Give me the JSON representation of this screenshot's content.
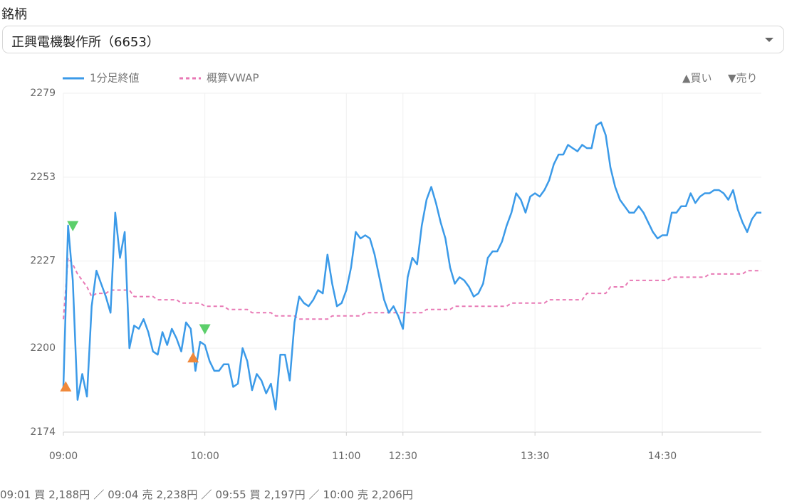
{
  "form": {
    "label": "銘柄",
    "select_value": "正興電機製作所（6653）"
  },
  "chart_data": {
    "type": "line",
    "categories": [
      "09:00",
      null,
      null,
      null,
      null,
      null,
      null,
      null,
      null,
      null,
      null,
      null,
      null,
      null,
      null,
      null,
      null,
      null,
      null,
      null,
      null,
      null,
      null,
      null,
      null,
      null,
      null,
      null,
      null,
      null,
      "10:00",
      null,
      null,
      null,
      null,
      null,
      null,
      null,
      null,
      null,
      null,
      null,
      null,
      null,
      null,
      null,
      null,
      null,
      null,
      null,
      null,
      null,
      null,
      null,
      null,
      null,
      null,
      null,
      null,
      null,
      "11:00",
      null,
      null,
      null,
      null,
      null,
      null,
      null,
      null,
      null,
      null,
      null,
      "12:30",
      null,
      null,
      null,
      null,
      null,
      null,
      null,
      null,
      null,
      null,
      null,
      null,
      null,
      null,
      null,
      null,
      null,
      null,
      null,
      null,
      null,
      null,
      null,
      null,
      null,
      null,
      null,
      "13:30",
      null,
      null,
      null,
      null,
      null,
      null,
      null,
      null,
      null,
      null,
      null,
      null,
      null,
      null,
      null,
      null,
      null,
      null,
      null,
      null,
      null,
      null,
      null,
      null,
      null,
      null,
      "14:30",
      null,
      null,
      null,
      null,
      null,
      null,
      null,
      null,
      null,
      null,
      null,
      null,
      null,
      null,
      null,
      null,
      null,
      null,
      null,
      null,
      null
    ],
    "series": [
      {
        "name": "1分足終値",
        "color": "#3b9ae8",
        "dashed": false,
        "values": [
          2188,
          2238,
          2221,
          2184,
          2192,
          2185,
          2213,
          2224,
          2220,
          2216,
          2211,
          2242,
          2228,
          2236,
          2200,
          2207,
          2206,
          2209,
          2205,
          2199,
          2198,
          2205,
          2201,
          2206,
          2203,
          2199,
          2208,
          2206,
          2193,
          2202,
          2201,
          2196,
          2193,
          2193,
          2195,
          2195,
          2188,
          2189,
          2200,
          2196,
          2187,
          2192,
          2190,
          2186,
          2189,
          2181,
          2198,
          2198,
          2190,
          2208,
          2216,
          2214,
          2213,
          2215,
          2218,
          2217,
          2229,
          2220,
          2213,
          2214,
          2218,
          2225,
          2236,
          2234,
          2235,
          2234,
          2229,
          2222,
          2215,
          2211,
          2213,
          2210,
          2206,
          2222,
          2228,
          2226,
          2238,
          2246,
          2250,
          2245,
          2239,
          2234,
          2225,
          2220,
          2222,
          2221,
          2219,
          2216,
          2217,
          2220,
          2228,
          2230,
          2230,
          2233,
          2238,
          2242,
          2248,
          2246,
          2242,
          2247,
          2248,
          2247,
          2249,
          2252,
          2257,
          2260,
          2260,
          2263,
          2262,
          2261,
          2263,
          2262,
          2262,
          2269,
          2270,
          2266,
          2256,
          2250,
          2246,
          2244,
          2242,
          2242,
          2244,
          2242,
          2239,
          2236,
          2234,
          2235,
          2235,
          2242,
          2242,
          2244,
          2244,
          2248,
          2245,
          2247,
          2248,
          2248,
          2249,
          2249,
          2248,
          2246,
          2249,
          2243,
          2239,
          2236,
          2240,
          2242,
          2242
        ]
      },
      {
        "name": "概算VWAP",
        "color": "#e879b5",
        "dashed": true,
        "values": [
          2209,
          2228,
          2226,
          2223,
          2221,
          2219,
          2216,
          2217,
          2217,
          2217,
          2218,
          2218,
          2218,
          2218,
          2218,
          2216,
          2216,
          2216,
          2216,
          2216,
          2215,
          2215,
          2215,
          2215,
          2215,
          2214,
          2214,
          2214,
          2214,
          2214,
          2213,
          2213,
          2213,
          2213,
          2213,
          2212,
          2212,
          2212,
          2212,
          2212,
          2211,
          2211,
          2211,
          2211,
          2211,
          2210,
          2210,
          2210,
          2210,
          2210,
          2209,
          2209,
          2209,
          2209,
          2209,
          2209,
          2209,
          2210,
          2210,
          2210,
          2210,
          2210,
          2210,
          2210,
          2211,
          2211,
          2211,
          2211,
          2211,
          2211,
          2211,
          2211,
          2211,
          2211,
          2211,
          2211,
          2211,
          2212,
          2212,
          2212,
          2212,
          2212,
          2212,
          2213,
          2213,
          2213,
          2213,
          2213,
          2213,
          2213,
          2213,
          2213,
          2213,
          2213,
          2213,
          2214,
          2214,
          2214,
          2214,
          2214,
          2214,
          2214,
          2214,
          2215,
          2215,
          2215,
          2215,
          2215,
          2215,
          2215,
          2215,
          2217,
          2217,
          2217,
          2217,
          2217,
          2219,
          2219,
          2219,
          2219,
          2221,
          2221,
          2221,
          2221,
          2221,
          2221,
          2221,
          2221,
          2221,
          2222,
          2222,
          2222,
          2222,
          2222,
          2222,
          2222,
          2222,
          2223,
          2223,
          2223,
          2223,
          2223,
          2223,
          2223,
          2223,
          2224,
          2224,
          2224,
          2224
        ]
      }
    ],
    "ylim": [
      2174,
      2279
    ],
    "yticks": [
      2174,
      2200,
      2227,
      2253,
      2279
    ],
    "grid": true,
    "legend_position": "top",
    "marker_legend": [
      "▲買い",
      "▼売り"
    ]
  },
  "trades": [
    {
      "time": "09:01",
      "side": "買",
      "price": 2188,
      "price_label": "2,188円",
      "color": "#f0883a",
      "direction": "up"
    },
    {
      "time": "09:04",
      "side": "売",
      "price": 2238,
      "price_label": "2,238円",
      "color": "#5ccf6b",
      "direction": "down"
    },
    {
      "time": "09:55",
      "side": "買",
      "price": 2197,
      "price_label": "2,197円",
      "color": "#f0883a",
      "direction": "up"
    },
    {
      "time": "10:00",
      "side": "売",
      "price": 2206,
      "price_label": "2,206円",
      "color": "#5ccf6b",
      "direction": "down"
    }
  ],
  "separator": "／"
}
